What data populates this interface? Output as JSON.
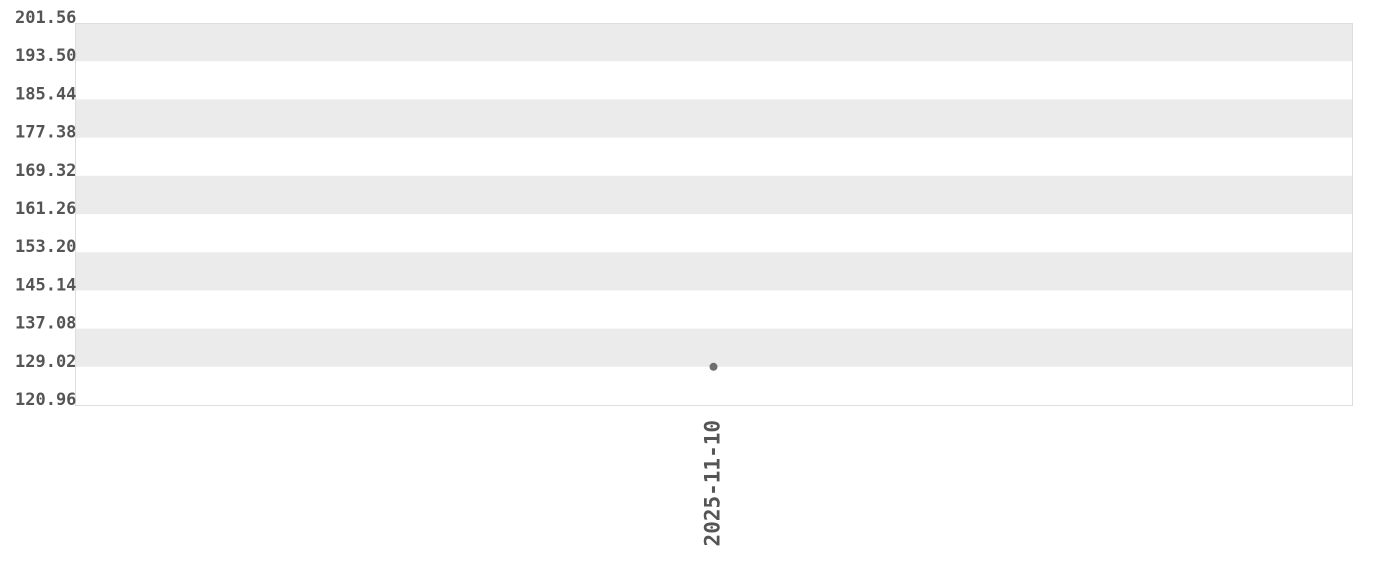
{
  "chart_data": {
    "type": "scatter",
    "title": "",
    "xlabel": "",
    "ylabel": "",
    "x": [
      "2025-11-10"
    ],
    "values": [
      129.02
    ],
    "ylim": [
      120.96,
      201.56
    ],
    "yticks": [
      "201.56",
      "193.50",
      "185.44",
      "177.38",
      "169.32",
      "161.26",
      "153.20",
      "145.14",
      "137.08",
      "129.02",
      "120.96"
    ],
    "xticks": [
      "2025-11-10"
    ],
    "grid": "alternating horizontal bands",
    "colors": {
      "band": "#ebebeb",
      "point": "#6e6e6e",
      "text": "#555555",
      "border": "#dddddd"
    }
  }
}
